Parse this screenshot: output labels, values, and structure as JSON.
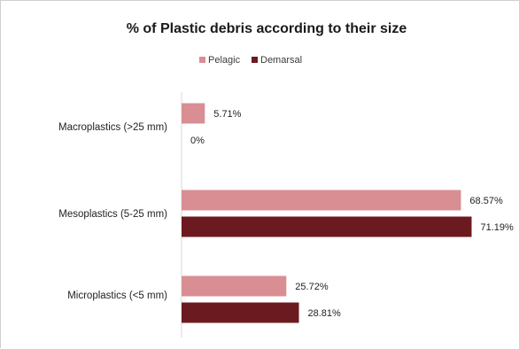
{
  "chart_data": {
    "type": "bar",
    "orientation": "horizontal",
    "title": "% of Plastic debris according to their size",
    "categories": [
      "Macroplastics (>25 mm)",
      "Mesoplastics (5-25 mm)",
      "Microplastics (<5 mm)"
    ],
    "series": [
      {
        "name": "Pelagic",
        "color": "#d98e93",
        "values": [
          5.71,
          68.57,
          25.72
        ],
        "labels": [
          "5.71%",
          "68.57%",
          "25.72%"
        ]
      },
      {
        "name": "Demarsal",
        "color": "#6b1a20",
        "values": [
          0,
          71.19,
          28.81
        ],
        "labels": [
          "0%",
          "71.19%",
          "28.81%"
        ]
      }
    ],
    "xlim": [
      0,
      75
    ],
    "legend_position": "top",
    "grid": false
  }
}
